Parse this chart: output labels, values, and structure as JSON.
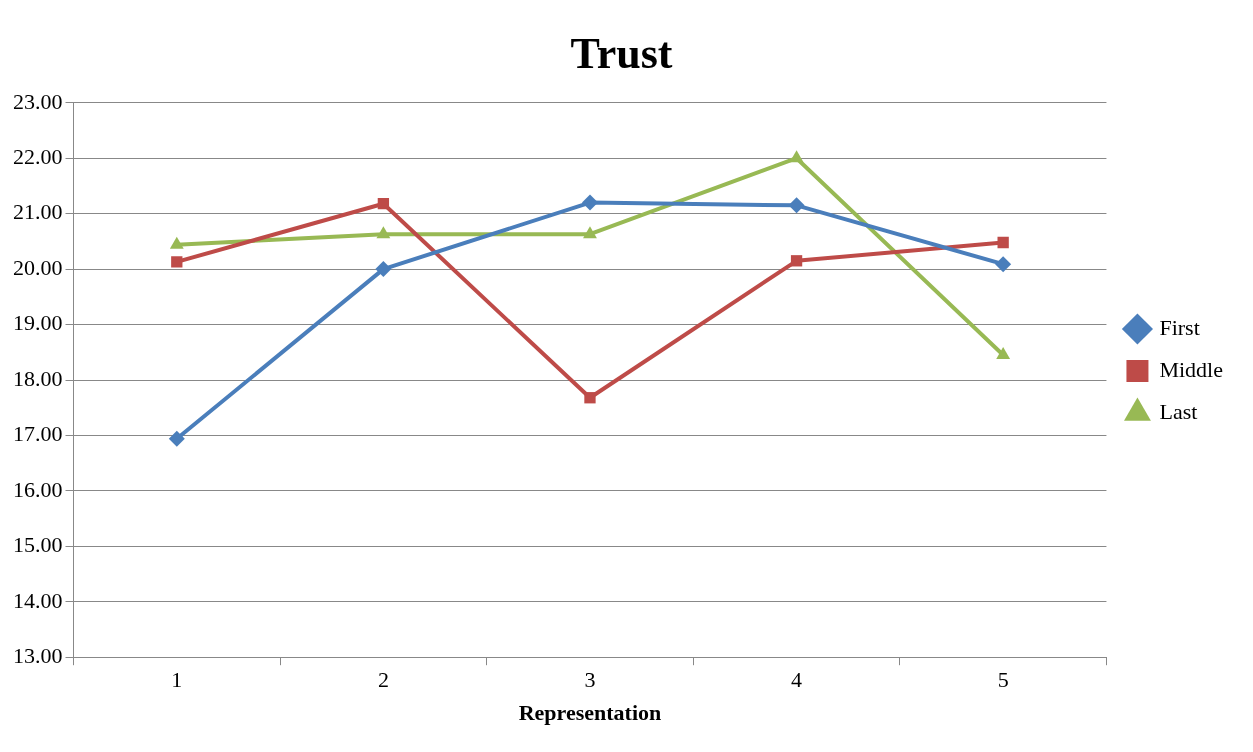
{
  "chart_data": {
    "type": "line",
    "title": "Trust",
    "xlabel": "Representation",
    "categories": [
      "1",
      "2",
      "3",
      "4",
      "5"
    ],
    "series": [
      {
        "name": "First",
        "color": "#4a7ebb",
        "marker": "diamond",
        "values": [
          16.94,
          20.0,
          21.2,
          21.15,
          20.09
        ]
      },
      {
        "name": "Middle",
        "color": "#be4b48",
        "marker": "square",
        "values": [
          20.13,
          21.18,
          17.68,
          20.15,
          20.48
        ]
      },
      {
        "name": "Last",
        "color": "#98b954",
        "marker": "triangle",
        "values": [
          20.44,
          20.63,
          20.63,
          22.0,
          18.45
        ]
      }
    ],
    "ylim": [
      13,
      23
    ],
    "yticks": [
      {
        "value": 13,
        "label": "13.00"
      },
      {
        "value": 14,
        "label": "14.00"
      },
      {
        "value": 15,
        "label": "15.00"
      },
      {
        "value": 16,
        "label": "16.00"
      },
      {
        "value": 17,
        "label": "17.00"
      },
      {
        "value": 18,
        "label": "18.00"
      },
      {
        "value": 19,
        "label": "19.00"
      },
      {
        "value": 20,
        "label": "20.00"
      },
      {
        "value": 21,
        "label": "21.00"
      },
      {
        "value": 22,
        "label": "22.00"
      },
      {
        "value": 23,
        "label": "23.00"
      }
    ],
    "grid": "y",
    "legend": "right",
    "line_style": "solid"
  }
}
